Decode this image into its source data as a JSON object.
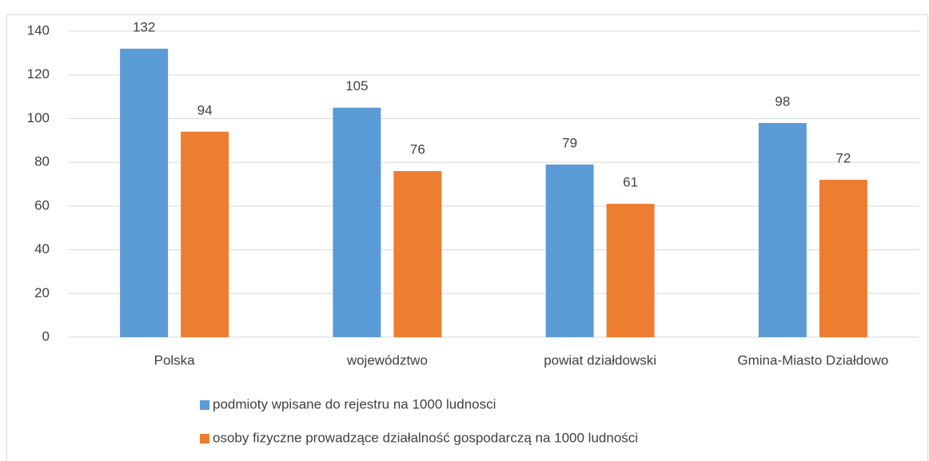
{
  "chart_data": {
    "type": "bar",
    "categories": [
      "Polska",
      "województwo",
      "powiat działdowski",
      "Gmina-Miasto Działdowo"
    ],
    "series": [
      {
        "name": "podmioty wpisane do rejestru na 1000 ludnosci",
        "color": "#5b9bd5",
        "values": [
          132,
          105,
          79,
          98
        ]
      },
      {
        "name": "osoby fizyczne prowadzące działalność gospodarczą na 1000 ludności",
        "color": "#ed7d31",
        "values": [
          94,
          76,
          61,
          72
        ]
      }
    ],
    "ylim": [
      0,
      140
    ],
    "yticks": [
      0,
      20,
      40,
      60,
      80,
      100,
      120,
      140
    ],
    "grid": true,
    "legend": "bottom",
    "data_labels": true
  }
}
